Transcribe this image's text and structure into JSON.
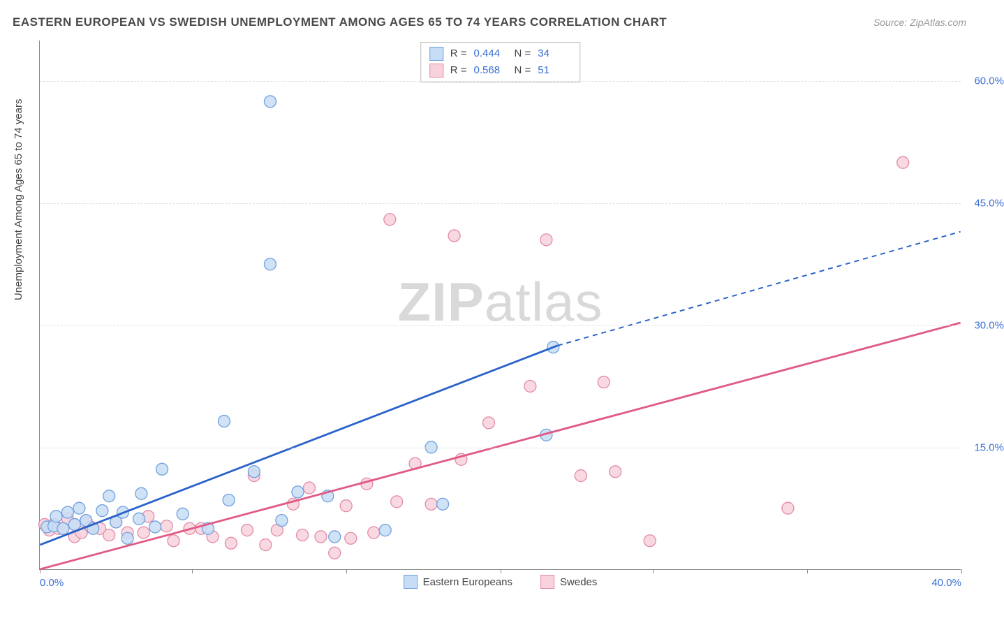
{
  "title": "EASTERN EUROPEAN VS SWEDISH UNEMPLOYMENT AMONG AGES 65 TO 74 YEARS CORRELATION CHART",
  "source": "Source: ZipAtlas.com",
  "ylabel": "Unemployment Among Ages 65 to 74 years",
  "watermark_a": "ZIP",
  "watermark_b": "atlas",
  "chart": {
    "type": "scatter",
    "xlim": [
      0,
      40
    ],
    "ylim": [
      0,
      65
    ],
    "x_tick_positions": [
      0,
      6.6,
      13.3,
      20,
      26.6,
      33.3,
      40
    ],
    "x_tick_labels_shown": {
      "0": "0.0%",
      "40": "40.0%"
    },
    "y_ticks": [
      15,
      30,
      45,
      60
    ],
    "y_tick_labels": [
      "15.0%",
      "30.0%",
      "45.0%",
      "60.0%"
    ],
    "grid_color": "#e0e0e0",
    "axis_color": "#888888",
    "tick_label_color": "#3b6fd6",
    "background_color": "#ffffff",
    "marker_radius": 8.5,
    "marker_stroke_width": 1.3,
    "line_width": 2.8
  },
  "series": [
    {
      "name": "Eastern Europeans",
      "label": "Eastern Europeans",
      "fill": "#c7ddf5",
      "stroke": "#6fa0e0",
      "line_color": "#2a62c9",
      "trend": {
        "x1": 0,
        "y1": 3.0,
        "x2": 22.5,
        "y2": 27.5,
        "x_solid_end": 22.5,
        "x_dash_end": 40,
        "y_dash_end": 41.5
      },
      "stats": {
        "R": "0.444",
        "N": "34"
      },
      "points": [
        [
          0.3,
          5.2
        ],
        [
          0.6,
          5.3
        ],
        [
          0.7,
          6.5
        ],
        [
          1.0,
          5.0
        ],
        [
          1.2,
          7.0
        ],
        [
          1.5,
          5.5
        ],
        [
          1.7,
          7.5
        ],
        [
          2.0,
          6.0
        ],
        [
          2.3,
          5.0
        ],
        [
          2.7,
          7.2
        ],
        [
          3.0,
          9.0
        ],
        [
          3.3,
          5.8
        ],
        [
          3.6,
          7.0
        ],
        [
          3.8,
          3.8
        ],
        [
          4.3,
          6.2
        ],
        [
          4.4,
          9.3
        ],
        [
          5.0,
          5.2
        ],
        [
          5.3,
          12.3
        ],
        [
          6.2,
          6.8
        ],
        [
          7.3,
          5.0
        ],
        [
          8.0,
          18.2
        ],
        [
          8.2,
          8.5
        ],
        [
          9.3,
          12.0
        ],
        [
          10.0,
          37.5
        ],
        [
          10.0,
          57.5
        ],
        [
          10.5,
          6.0
        ],
        [
          11.2,
          9.5
        ],
        [
          12.5,
          9.0
        ],
        [
          12.8,
          4.0
        ],
        [
          15.0,
          4.8
        ],
        [
          17.0,
          15.0
        ],
        [
          17.5,
          8.0
        ],
        [
          22.0,
          16.5
        ],
        [
          22.3,
          27.3
        ]
      ]
    },
    {
      "name": "Swedes",
      "label": "Swedes",
      "fill": "#f7d2dc",
      "stroke": "#e48aa5",
      "line_color": "#e05a85",
      "trend": {
        "x1": 0,
        "y1": 0.0,
        "x2": 40,
        "y2": 30.3,
        "x_solid_end": 40
      },
      "stats": {
        "R": "0.568",
        "N": "51"
      },
      "points": [
        [
          0.2,
          5.5
        ],
        [
          0.4,
          4.8
        ],
        [
          0.6,
          5.5
        ],
        [
          0.8,
          5.0
        ],
        [
          1.0,
          5.0
        ],
        [
          1.2,
          6.2
        ],
        [
          1.5,
          5.5
        ],
        [
          1.5,
          4.0
        ],
        [
          1.8,
          4.5
        ],
        [
          2.0,
          6.0
        ],
        [
          2.2,
          5.2
        ],
        [
          2.6,
          5.0
        ],
        [
          3.0,
          4.2
        ],
        [
          3.3,
          5.8
        ],
        [
          3.8,
          4.5
        ],
        [
          4.5,
          4.5
        ],
        [
          4.7,
          6.5
        ],
        [
          5.5,
          5.3
        ],
        [
          5.8,
          3.5
        ],
        [
          6.5,
          5.0
        ],
        [
          7.0,
          5.0
        ],
        [
          7.5,
          4.0
        ],
        [
          8.3,
          3.2
        ],
        [
          9.0,
          4.8
        ],
        [
          9.3,
          11.5
        ],
        [
          9.8,
          3.0
        ],
        [
          10.3,
          4.8
        ],
        [
          11.0,
          8.0
        ],
        [
          11.4,
          4.2
        ],
        [
          11.7,
          10.0
        ],
        [
          12.2,
          4.0
        ],
        [
          12.8,
          2.0
        ],
        [
          13.3,
          7.8
        ],
        [
          13.5,
          3.8
        ],
        [
          14.2,
          10.5
        ],
        [
          14.5,
          4.5
        ],
        [
          15.2,
          43.0
        ],
        [
          15.5,
          8.3
        ],
        [
          16.3,
          13.0
        ],
        [
          17.0,
          8.0
        ],
        [
          18.0,
          41.0
        ],
        [
          18.3,
          13.5
        ],
        [
          19.5,
          18.0
        ],
        [
          21.3,
          22.5
        ],
        [
          22.0,
          40.5
        ],
        [
          23.5,
          11.5
        ],
        [
          24.5,
          23.0
        ],
        [
          25.0,
          12.0
        ],
        [
          26.5,
          3.5
        ],
        [
          32.5,
          7.5
        ],
        [
          37.5,
          50.0
        ]
      ]
    }
  ],
  "stats_box": {
    "r_label": "R =",
    "n_label": "N ="
  },
  "legend_labels": [
    "Eastern Europeans",
    "Swedes"
  ]
}
